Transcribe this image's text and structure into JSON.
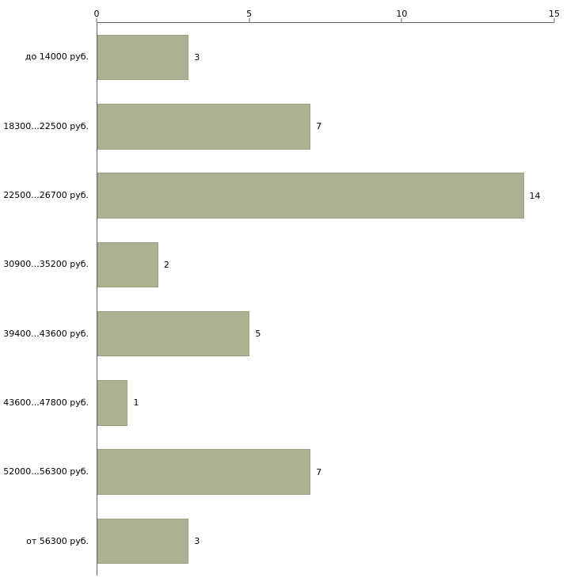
{
  "chart_data": {
    "type": "bar",
    "orientation": "horizontal",
    "title": "",
    "xlabel": "",
    "ylabel": "",
    "categories": [
      "до 14000 руб.",
      "18300...22500 руб.",
      "22500...26700 руб.",
      "30900...35200 руб.",
      "39400...43600 руб.",
      "43600...47800 руб.",
      "52000...56300 руб.",
      "от 56300 руб."
    ],
    "values": [
      3,
      7,
      14,
      2,
      5,
      1,
      7,
      3
    ],
    "xlim": [
      0,
      15
    ],
    "x_ticks": [
      0,
      5,
      10,
      15
    ],
    "grid": false,
    "legend": false,
    "bar_color": "#abb294",
    "bar_border_color": "#9aa27f",
    "axis_color": "#666666",
    "background_color": "#ffffff"
  }
}
